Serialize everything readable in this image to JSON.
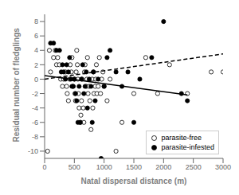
{
  "chart_data": {
    "type": "scatter",
    "xlabel": "Natal dispersal distance (m)",
    "ylabel": "Residual number of fledglings",
    "xlim": [
      0,
      3000
    ],
    "ylim": [
      -11,
      9
    ],
    "xticks": [
      0,
      500,
      1000,
      1500,
      2000,
      2500,
      3000
    ],
    "yticks": [
      -10,
      -8,
      -6,
      -4,
      -2,
      0,
      2,
      4,
      6,
      8
    ],
    "grid": false,
    "legend": "lower right",
    "series": [
      {
        "name": "parasite-free",
        "type": "scatter",
        "marker": "open_circle",
        "color": "#000000",
        "x": [
          50,
          80,
          100,
          150,
          180,
          200,
          220,
          250,
          270,
          300,
          320,
          350,
          370,
          380,
          400,
          420,
          430,
          450,
          460,
          480,
          500,
          510,
          520,
          530,
          540,
          550,
          560,
          570,
          580,
          600,
          610,
          620,
          630,
          650,
          660,
          670,
          680,
          700,
          710,
          720,
          730,
          750,
          760,
          780,
          800,
          810,
          820,
          830,
          850,
          860,
          870,
          880,
          900,
          920,
          940,
          960,
          980,
          1000,
          1050,
          1100,
          1200,
          1300,
          1500,
          1700,
          1900,
          2100,
          2400,
          2800,
          3000
        ],
        "values": [
          -10,
          4,
          1,
          3,
          4,
          2,
          3,
          2,
          0,
          -1,
          0,
          1,
          -1,
          -2,
          -3,
          0,
          2,
          1,
          3,
          -1,
          0,
          -2,
          -3,
          1,
          4,
          2,
          0,
          -2,
          -4,
          -6,
          -5,
          -3,
          0,
          -4,
          -6,
          1,
          2,
          -1,
          0,
          3,
          -2,
          -1,
          -3,
          -7,
          0,
          -4,
          1,
          -2,
          -1,
          0,
          2,
          -2,
          -1,
          3,
          -2,
          0,
          1,
          -1,
          -3,
          0,
          -10,
          -6,
          -2,
          3,
          -2,
          2,
          -2,
          1,
          1
        ]
      },
      {
        "name": "parasite-infested",
        "type": "scatter",
        "marker": "circle",
        "color": "#000000",
        "x": [
          100,
          150,
          200,
          250,
          280,
          300,
          320,
          350,
          370,
          400,
          420,
          440,
          460,
          480,
          500,
          520,
          540,
          560,
          580,
          600,
          620,
          640,
          660,
          680,
          700,
          720,
          750,
          780,
          800,
          820,
          850,
          900,
          950,
          1000,
          1050,
          1100,
          1200,
          1300,
          1400,
          1500,
          1600,
          1800,
          2000,
          2300,
          2400
        ],
        "values": [
          5,
          5,
          4,
          4,
          1,
          2,
          1,
          0,
          2,
          1,
          3,
          0,
          -1,
          -1,
          0,
          -2,
          -3,
          -6,
          -1,
          -6,
          0,
          2,
          -2,
          -1,
          1,
          -4,
          0,
          -1,
          -6,
          1,
          -3,
          0,
          -11,
          -1,
          3,
          4,
          1,
          -1,
          1,
          -6,
          0,
          3,
          8,
          -2,
          -3
        ]
      },
      {
        "type": "line",
        "line_style": "solid",
        "color": "#000000",
        "x": [
          0,
          2400
        ],
        "values": [
          0.5,
          -2.2
        ]
      },
      {
        "type": "line",
        "line_style": "dashed",
        "color": "#000000",
        "x": [
          0,
          3000
        ],
        "values": [
          0.0,
          3.5
        ]
      }
    ]
  }
}
